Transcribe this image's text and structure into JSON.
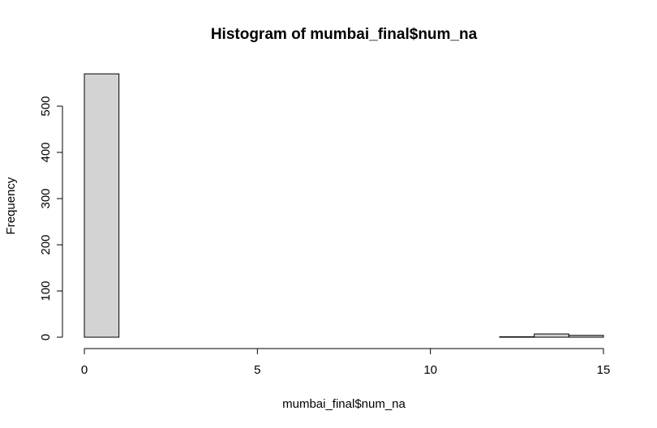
{
  "chart_data": {
    "type": "bar",
    "title": "Histogram of mumbai_final$num_na",
    "xlabel": "mumbai_final$num_na",
    "ylabel": "Frequency",
    "bins": [
      {
        "from": 0,
        "to": 1,
        "count": 570
      },
      {
        "from": 1,
        "to": 2,
        "count": 0
      },
      {
        "from": 2,
        "to": 3,
        "count": 0
      },
      {
        "from": 3,
        "to": 4,
        "count": 0
      },
      {
        "from": 4,
        "to": 5,
        "count": 0
      },
      {
        "from": 5,
        "to": 6,
        "count": 0
      },
      {
        "from": 6,
        "to": 7,
        "count": 0
      },
      {
        "from": 7,
        "to": 8,
        "count": 0
      },
      {
        "from": 8,
        "to": 9,
        "count": 0
      },
      {
        "from": 9,
        "to": 10,
        "count": 0
      },
      {
        "from": 10,
        "to": 11,
        "count": 0
      },
      {
        "from": 11,
        "to": 12,
        "count": 0
      },
      {
        "from": 12,
        "to": 13,
        "count": 1
      },
      {
        "from": 13,
        "to": 14,
        "count": 7
      },
      {
        "from": 14,
        "to": 15,
        "count": 4
      }
    ],
    "xlim": [
      0,
      15
    ],
    "ylim": [
      0,
      570
    ],
    "xticks": [
      0,
      5,
      10,
      15
    ],
    "yticks": [
      0,
      100,
      200,
      300,
      400,
      500
    ],
    "bar_color": "#d3d3d3",
    "grid": false
  }
}
